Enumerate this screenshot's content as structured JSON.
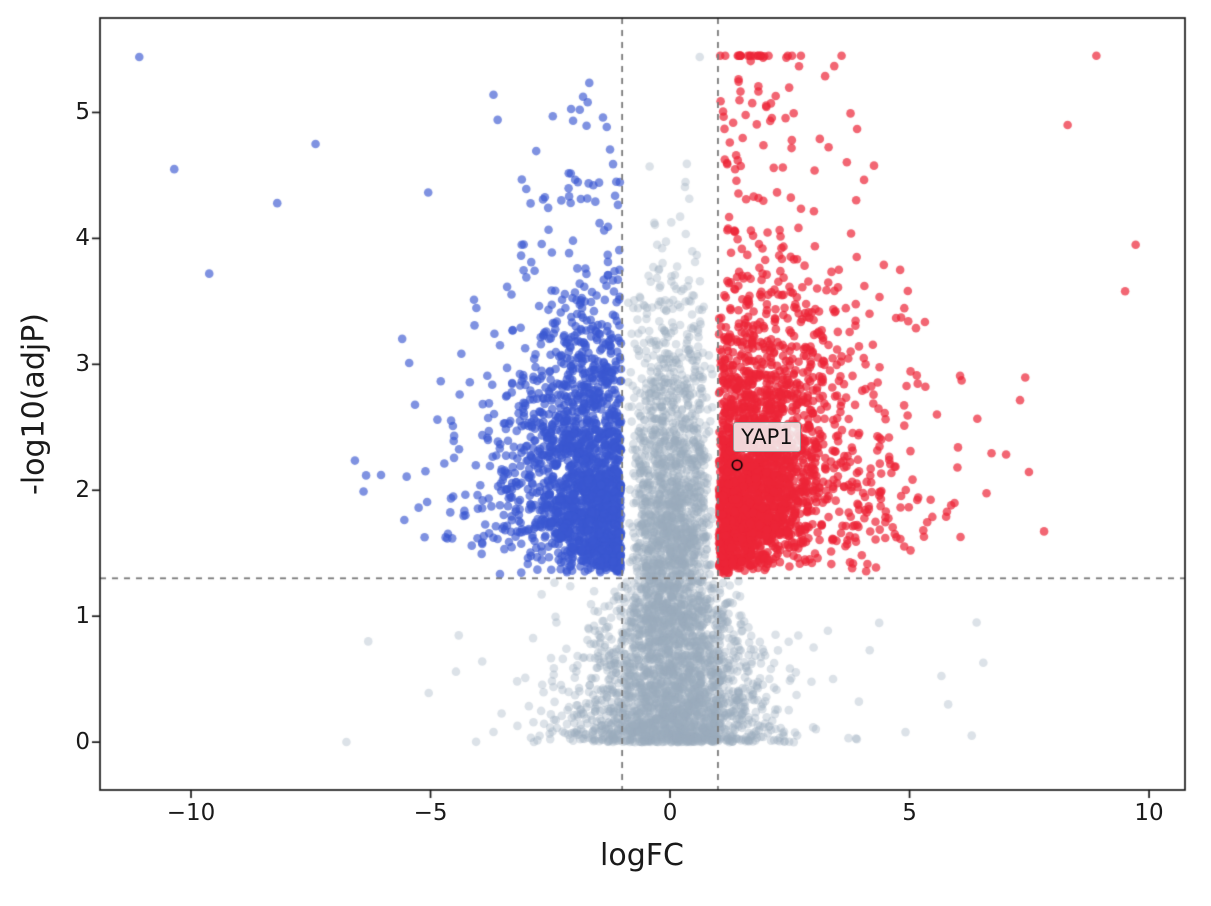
{
  "figure": {
    "background": "#ffffff"
  },
  "chart_data": {
    "type": "scatter",
    "variant": "volcano",
    "title": "",
    "xlabel": "logFC",
    "ylabel": "-log10(adjP)",
    "xlim": [
      -11.9,
      10.75
    ],
    "ylim": [
      -0.38,
      5.75
    ],
    "x_ticks": [
      {
        "value": -10,
        "label": "−10"
      },
      {
        "value": -5,
        "label": "−5"
      },
      {
        "value": 0,
        "label": "0"
      },
      {
        "value": 5,
        "label": "5"
      },
      {
        "value": 10,
        "label": "10"
      }
    ],
    "y_ticks": [
      {
        "value": 0,
        "label": "0"
      },
      {
        "value": 1,
        "label": "1"
      },
      {
        "value": 2,
        "label": "2"
      },
      {
        "value": 3,
        "label": "3"
      },
      {
        "value": 4,
        "label": "4"
      },
      {
        "value": 5,
        "label": "5"
      }
    ],
    "grid": false,
    "legend": "none",
    "thresholds": {
      "logfc": [
        -1,
        1
      ],
      "significance": 1.301,
      "line_color": "#7b7b7b",
      "line_dash": [
        6,
        6
      ],
      "line_width": 1.8
    },
    "colors": {
      "up": "rgba(236,37,56,0.7)",
      "down": "rgba(58,87,209,0.65)",
      "ns": "rgba(154,173,189,0.35)",
      "annotation_point": "#000000",
      "spine": "#1a1a1a"
    },
    "point_radius": 4.3,
    "y_cap": 5.45,
    "annotation": {
      "label": "YAP1",
      "x": 1.4,
      "y": 2.2
    },
    "generator": {
      "seed": 1337,
      "counts": {
        "ns_bottom": 2600,
        "ns_mid": 1400,
        "down": 1900,
        "up": 2300
      }
    },
    "outlier_points": [
      {
        "s": "down",
        "x": -11.08,
        "y": 5.44
      },
      {
        "s": "down",
        "x": -10.35,
        "y": 4.55
      },
      {
        "s": "down",
        "x": -9.62,
        "y": 3.72
      },
      {
        "s": "down",
        "x": -8.2,
        "y": 4.28
      },
      {
        "s": "down",
        "x": -7.4,
        "y": 4.75
      },
      {
        "s": "up",
        "x": 9.72,
        "y": 3.95
      },
      {
        "s": "up",
        "x": 9.5,
        "y": 3.58
      },
      {
        "s": "up",
        "x": 8.9,
        "y": 5.45
      },
      {
        "s": "up",
        "x": 8.3,
        "y": 4.9
      },
      {
        "s": "ns",
        "x": 6.4,
        "y": 0.95
      },
      {
        "s": "ns",
        "x": -6.3,
        "y": 0.8
      },
      {
        "s": "ns",
        "x": 0.62,
        "y": 5.44
      }
    ]
  }
}
